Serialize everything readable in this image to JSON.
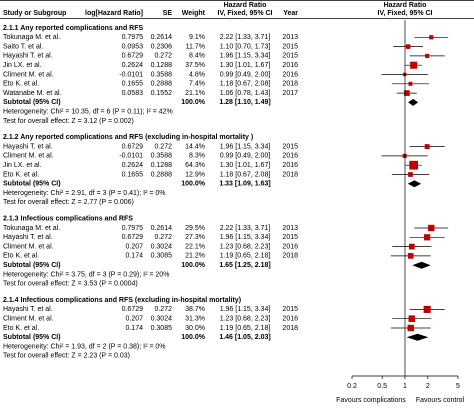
{
  "chart_data": {
    "type": "forest",
    "headers": {
      "study": "Study or Subgroup",
      "loghr": "log[Hazard Ratio]",
      "se": "SE",
      "weight": "Weight",
      "ci_title": "Hazard Ratio",
      "ci_method": "IV, Fixed, 95% CI",
      "year": "Year",
      "plot_title": "Hazard Ratio",
      "plot_method": "IV, Fixed, 95% CI"
    },
    "groups": [
      {
        "title": "2.1.1 Any reported complications and RFS",
        "studies": [
          {
            "name": "Tokunaga M. et al.",
            "loghr": 0.7975,
            "se": 0.2614,
            "weight": 9.1,
            "weight_label": "9.1%",
            "ci": "2.22 [1.33, 3.71]",
            "year": 2013,
            "hr": 2.22,
            "lo": 1.33,
            "hi": 3.71
          },
          {
            "name": "Saito T. et al.",
            "loghr": 0.0953,
            "se": 0.2306,
            "weight": 11.7,
            "weight_label": "11.7%",
            "ci": "1.10 [0.70, 1.73]",
            "year": 2015,
            "hr": 1.1,
            "lo": 0.7,
            "hi": 1.73
          },
          {
            "name": "Hayashi T. et al.",
            "loghr": 0.6729,
            "se": 0.272,
            "weight": 8.4,
            "weight_label": "8.4%",
            "ci": "1.96 [1.15, 3.34]",
            "year": 2015,
            "hr": 1.96,
            "lo": 1.15,
            "hi": 3.34
          },
          {
            "name": "Jin LX. et al.",
            "loghr": 0.2624,
            "se": 0.1288,
            "weight": 37.5,
            "weight_label": "37.5%",
            "ci": "1.30 [1.01, 1.67]",
            "year": 2016,
            "hr": 1.3,
            "lo": 1.01,
            "hi": 1.67
          },
          {
            "name": "Climent M. et al.",
            "loghr": -0.0101,
            "se": 0.3588,
            "weight": 4.8,
            "weight_label": "4.8%",
            "ci": "0.99 [0.49, 2.00]",
            "year": 2016,
            "hr": 0.99,
            "lo": 0.49,
            "hi": 2.0
          },
          {
            "name": "Eto K. et al.",
            "loghr": 0.1655,
            "se": 0.2888,
            "weight": 7.4,
            "weight_label": "7.4%",
            "ci": "1.18 [0.67, 2.08]",
            "year": 2018,
            "hr": 1.18,
            "lo": 0.67,
            "hi": 2.08
          },
          {
            "name": "Watanabe M. et al.",
            "loghr": 0.0583,
            "se": 0.1552,
            "weight": 21.1,
            "weight_label": "21.1%",
            "ci": "1.06 [0.78, 1.43]",
            "year": 2017,
            "hr": 1.06,
            "lo": 0.78,
            "hi": 1.43
          }
        ],
        "subtotal": {
          "label": "Subtotal (95% CI)",
          "weight": 100,
          "weight_label": "100.0%",
          "ci": "1.28 [1.10, 1.49]",
          "hr": 1.28,
          "lo": 1.1,
          "hi": 1.49
        },
        "heterogeneity": "Heterogeneity: Chi² = 10.35, df = 6 (P = 0.11); I² = 42%",
        "overall_effect": "Test for overall effect: Z = 3.12 (P = 0.002)"
      },
      {
        "title": "2.1.2 Any reported complications and RFS (excluding in-hospital mortality )",
        "studies": [
          {
            "name": "Hayashi T. et al.",
            "loghr": 0.6729,
            "se": 0.272,
            "weight": 14.4,
            "weight_label": "14.4%",
            "ci": "1.96 [1.15, 3.34]",
            "year": 2015,
            "hr": 1.96,
            "lo": 1.15,
            "hi": 3.34
          },
          {
            "name": "Climent M. et al.",
            "loghr": -0.0101,
            "se": 0.3588,
            "weight": 8.3,
            "weight_label": "8.3%",
            "ci": "0.99 [0.49, 2.00]",
            "year": 2016,
            "hr": 0.99,
            "lo": 0.49,
            "hi": 2.0
          },
          {
            "name": "Jin LX. et al.",
            "loghr": 0.2624,
            "se": 0.1288,
            "weight": 64.3,
            "weight_label": "64.3%",
            "ci": "1.30 [1.01, 1.67]",
            "year": 2016,
            "hr": 1.3,
            "lo": 1.01,
            "hi": 1.67
          },
          {
            "name": "Eto K. et al.",
            "loghr": 0.1655,
            "se": 0.2888,
            "weight": 12.9,
            "weight_label": "12.9%",
            "ci": "1.18 [0.67, 2.08]",
            "year": 2018,
            "hr": 1.18,
            "lo": 0.67,
            "hi": 2.08
          }
        ],
        "subtotal": {
          "label": "Subtotal (95% CI)",
          "weight": 100,
          "weight_label": "100.0%",
          "ci": "1.33 [1.09, 1.63]",
          "hr": 1.33,
          "lo": 1.09,
          "hi": 1.63
        },
        "heterogeneity": "Heterogeneity: Chi² = 2.91, df = 3 (P = 0.41); I² = 0%",
        "overall_effect": "Test for overall effect: Z = 2.77 (P = 0.006)"
      },
      {
        "title": "2.1.3 Infectious complications and RFS",
        "studies": [
          {
            "name": "Tokunaga M. et al.",
            "loghr": 0.7975,
            "se": 0.2614,
            "weight": 29.5,
            "weight_label": "29.5%",
            "ci": "2.22 [1.33, 3.71]",
            "year": 2013,
            "hr": 2.22,
            "lo": 1.33,
            "hi": 3.71
          },
          {
            "name": "Hayashi T. et al.",
            "loghr": 0.6729,
            "se": 0.272,
            "weight": 27.3,
            "weight_label": "27.3%",
            "ci": "1.96 [1.15, 3.34]",
            "year": 2015,
            "hr": 1.96,
            "lo": 1.15,
            "hi": 3.34
          },
          {
            "name": "Climent M. et al.",
            "loghr": 0.207,
            "se": 0.3024,
            "weight": 22.1,
            "weight_label": "22.1%",
            "ci": "1.23 [0.68, 2.23]",
            "year": 2016,
            "hr": 1.23,
            "lo": 0.68,
            "hi": 2.23
          },
          {
            "name": "Eto K. et al.",
            "loghr": 0.174,
            "se": 0.3085,
            "weight": 21.2,
            "weight_label": "21.2%",
            "ci": "1.19 [0.65, 2.18]",
            "year": 2018,
            "hr": 1.19,
            "lo": 0.65,
            "hi": 2.18
          }
        ],
        "subtotal": {
          "label": "Subtotal (95% CI)",
          "weight": 100,
          "weight_label": "100.0%",
          "ci": "1.65 [1.25, 2.18]",
          "hr": 1.65,
          "lo": 1.25,
          "hi": 2.18
        },
        "heterogeneity": "Heterogeneity: Chi² = 3.75, df = 3 (P = 0.29); I² = 20%",
        "overall_effect": "Test for overall effect: Z = 3.53 (P = 0.0004)"
      },
      {
        "title": "2.1.4 Infectious complications and RFS (excluding in-hospital mortality)",
        "studies": [
          {
            "name": "Hayashi T. et al.",
            "loghr": 0.6729,
            "se": 0.272,
            "weight": 38.7,
            "weight_label": "38.7%",
            "ci": "1.96 [1.15, 3.34]",
            "year": 2015,
            "hr": 1.96,
            "lo": 1.15,
            "hi": 3.34
          },
          {
            "name": "Climent M. et al.",
            "loghr": 0.207,
            "se": 0.3024,
            "weight": 31.3,
            "weight_label": "31.3%",
            "ci": "1.23 [0.68, 2.23]",
            "year": 2016,
            "hr": 1.23,
            "lo": 0.68,
            "hi": 2.23
          },
          {
            "name": "Eto K. et al.",
            "loghr": 0.174,
            "se": 0.3085,
            "weight": 30.0,
            "weight_label": "30.0%",
            "ci": "1.19 [0.65, 2.18]",
            "year": 2018,
            "hr": 1.19,
            "lo": 0.65,
            "hi": 2.18
          }
        ],
        "subtotal": {
          "label": "Subtotal (95% CI)",
          "weight": 100,
          "weight_label": "100.0%",
          "ci": "1.46 [1.05, 2.03]",
          "hr": 1.46,
          "lo": 1.05,
          "hi": 2.03
        },
        "heterogeneity": "Heterogeneity: Chi² = 1.93, df = 2 (P = 0.38); I² = 0%",
        "overall_effect": "Test for overall effect: Z = 2.23 (P = 0.03)"
      }
    ],
    "xlim": [
      0.2,
      5
    ],
    "xticks": [
      0.2,
      0.5,
      1,
      2,
      5
    ],
    "log_scale": true,
    "reference": 1,
    "favours_left": "Favours complications",
    "favours_right": "Favours control",
    "marker_color": "#c00000",
    "diamond_color": "#000000"
  }
}
